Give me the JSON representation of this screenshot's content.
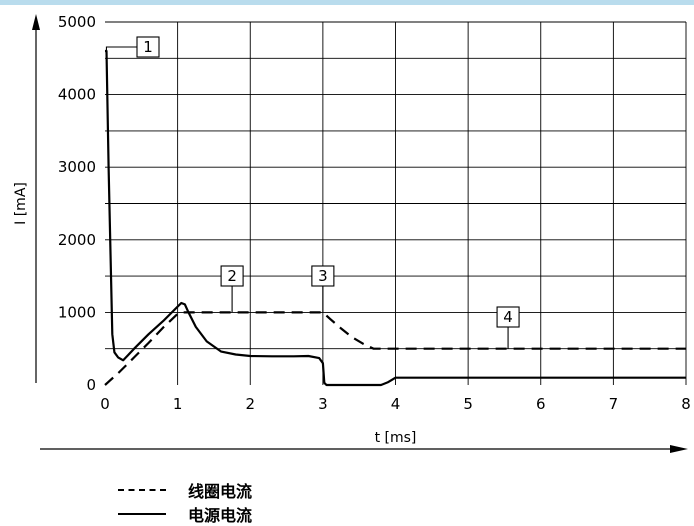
{
  "chart_data": {
    "type": "line",
    "title": "",
    "xlabel": "t [ms]",
    "ylabel": "I [mA]",
    "xlim": [
      0,
      8
    ],
    "ylim": [
      0,
      5000
    ],
    "x_ticks": [
      0,
      1,
      2,
      3,
      4,
      5,
      6,
      7,
      8
    ],
    "x_tick_labels": [
      "0",
      "1",
      "2",
      "3",
      "4",
      "5",
      "6",
      "7",
      "8"
    ],
    "y_ticks": [
      0,
      1000,
      2000,
      3000,
      4000,
      5000
    ],
    "y_tick_labels": [
      "0",
      "1000",
      "2000",
      "3000",
      "4000",
      "5000"
    ],
    "grid": true,
    "series": [
      {
        "name": "线圈电流",
        "style": "dashed",
        "color": "#000000",
        "x": [
          0,
          0.2,
          0.4,
          0.6,
          0.8,
          1.0,
          1.05,
          1.5,
          2.0,
          2.5,
          3.0,
          3.1,
          3.25,
          3.4,
          3.55,
          3.7,
          4.0,
          5.0,
          6.0,
          7.0,
          8.0
        ],
        "y": [
          0,
          180,
          380,
          580,
          790,
          980,
          1000,
          1000,
          1000,
          1000,
          1000,
          910,
          780,
          660,
          570,
          500,
          500,
          500,
          500,
          500,
          500
        ]
      },
      {
        "name": "电源电流",
        "style": "solid",
        "color": "#000000",
        "x": [
          0,
          0.02,
          0.05,
          0.1,
          0.13,
          0.18,
          0.25,
          0.4,
          0.6,
          0.8,
          1.0,
          1.05,
          1.1,
          1.15,
          1.25,
          1.4,
          1.6,
          1.8,
          2.0,
          2.3,
          2.6,
          2.8,
          2.95,
          3.0,
          3.02,
          3.05,
          3.2,
          3.5,
          3.8,
          3.9,
          4.0,
          5.0,
          6.0,
          7.0,
          8.0
        ],
        "y": [
          4600,
          4600,
          3000,
          700,
          450,
          380,
          340,
          500,
          700,
          880,
          1080,
          1130,
          1110,
          1000,
          800,
          600,
          460,
          420,
          400,
          395,
          395,
          400,
          370,
          300,
          30,
          0,
          0,
          0,
          0,
          40,
          100,
          100,
          100,
          100,
          100
        ]
      }
    ],
    "annotations": [
      {
        "label": "1",
        "x": 0.02,
        "y": 4600
      },
      {
        "label": "2",
        "x": 1.75,
        "y": 1000
      },
      {
        "label": "3",
        "x": 3.0,
        "y": 1000
      },
      {
        "label": "4",
        "x": 5.55,
        "y": 500
      }
    ],
    "legend": {
      "placement": "bottom-left",
      "entries": [
        {
          "label": "线圈电流",
          "style": "dashed"
        },
        {
          "label": "电源电流",
          "style": "solid"
        }
      ]
    }
  }
}
